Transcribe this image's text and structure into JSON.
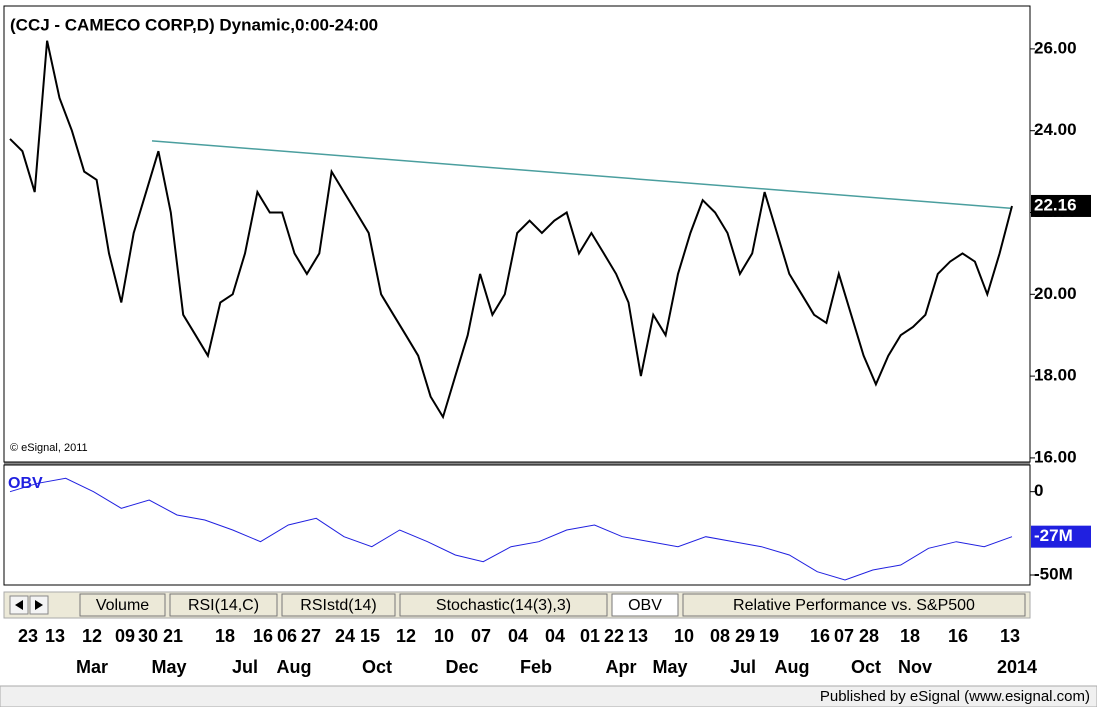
{
  "chart_data": {
    "type": "line",
    "title": "(CCJ - CAMECO CORP,D) Dynamic,0:00-24:00",
    "watermark": "© eSignal, 2011",
    "ylim": [
      15.9,
      27.0
    ],
    "yticks": [
      {
        "value": 16,
        "label": "16.00"
      },
      {
        "value": 18,
        "label": "18.00"
      },
      {
        "value": 20,
        "label": "20.00"
      },
      {
        "value": 22,
        "label": "22.00"
      },
      {
        "value": 24,
        "label": "24.00"
      },
      {
        "value": 26,
        "label": "26.00"
      }
    ],
    "series": [
      {
        "name": "CCJ",
        "color": "#000000",
        "values": [
          23.8,
          23.5,
          22.5,
          26.2,
          24.8,
          24.0,
          23.0,
          22.8,
          21.0,
          19.8,
          21.5,
          22.5,
          23.5,
          22.0,
          19.5,
          19.0,
          18.5,
          19.8,
          20.0,
          21.0,
          22.5,
          22.0,
          22.0,
          21.0,
          20.5,
          21.0,
          23.0,
          22.5,
          22.0,
          21.5,
          20.0,
          19.5,
          19.0,
          18.5,
          17.5,
          17.0,
          18.0,
          19.0,
          20.5,
          19.5,
          20.0,
          21.5,
          21.8,
          21.5,
          21.8,
          22.0,
          21.0,
          21.5,
          21.0,
          20.5,
          19.8,
          18.0,
          19.5,
          19.0,
          20.5,
          21.5,
          22.3,
          22.0,
          21.5,
          20.5,
          21.0,
          22.5,
          21.5,
          20.5,
          20.0,
          19.5,
          19.3,
          20.5,
          19.5,
          18.5,
          17.8,
          18.5,
          19.0,
          19.2,
          19.5,
          20.5,
          20.8,
          21.0,
          20.8,
          20.0,
          21.0,
          22.16
        ]
      }
    ],
    "last_value": 22.16,
    "last_value_label": "22.16",
    "trendline": {
      "color": "#4a9e9e",
      "values": [
        23.75,
        22.1
      ]
    },
    "indicator": {
      "name": "OBV",
      "color": "#2020e0",
      "ylim": [
        -56000000,
        16000000
      ],
      "yticks": [
        {
          "value": -50000000,
          "label": "-50M"
        },
        0
      ],
      "values": [
        0,
        5000000,
        8000000,
        0,
        -10000000,
        -5000000,
        -14000000,
        -17000000,
        -23000000,
        -30000000,
        -20000000,
        -16000000,
        -27000000,
        -33000000,
        -23000000,
        -30000000,
        -38000000,
        -42000000,
        -33000000,
        -30000000,
        -23000000,
        -20000000,
        -27000000,
        -30000000,
        -33000000,
        -27000000,
        -30000000,
        -33000000,
        -38000000,
        -48000000,
        -53000000,
        -47000000,
        -44000000,
        -34000000,
        -30000000,
        -33000000,
        -27000000
      ],
      "last_value": -27000000,
      "last_value_label": "-27M"
    },
    "tabs": [
      "Volume",
      "RSI(14,C)",
      "RSIstd(14)",
      "Stochastic(14(3),3)",
      "OBV",
      "Relative Performance vs. S&P500"
    ],
    "selected_tab": "OBV",
    "x_day_labels": [
      "23",
      "13",
      "12",
      "09",
      "30",
      "21",
      "18",
      "16",
      "06",
      "27",
      "24",
      "15",
      "12",
      "10",
      "07",
      "04",
      "04",
      "01",
      "22",
      "13",
      "10",
      "08",
      "29",
      "19",
      "16",
      "07",
      "28",
      "18",
      "16",
      "13"
    ],
    "x_month_labels": [
      "Mar",
      "May",
      "Jul",
      "Aug",
      "Oct",
      "Dec",
      "Feb",
      "Apr",
      "May",
      "Jul",
      "Aug",
      "Oct",
      "Nov",
      "2014"
    ],
    "footer": "Published by eSignal (www.esignal.com)"
  }
}
